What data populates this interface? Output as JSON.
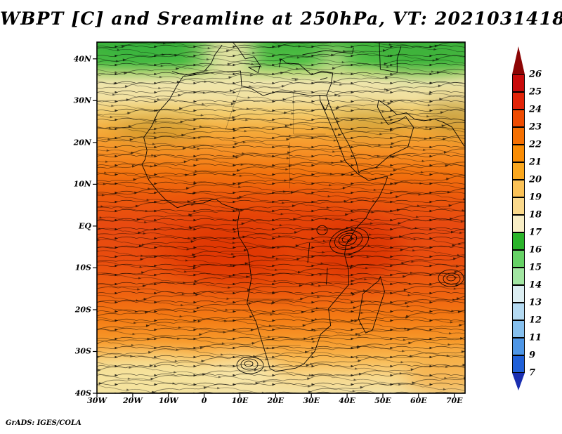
{
  "title": "WBPT [C] and Sreamline at 250hPa, VT: 2021031418",
  "credit": "GrADS: IGES/COLA",
  "map": {
    "lat_labels": [
      {
        "value": 40,
        "label": "40N"
      },
      {
        "value": 30,
        "label": "30N"
      },
      {
        "value": 20,
        "label": "20N"
      },
      {
        "value": 10,
        "label": "10N"
      },
      {
        "value": 0,
        "label": "EQ"
      },
      {
        "value": -10,
        "label": "10S"
      },
      {
        "value": -20,
        "label": "20S"
      },
      {
        "value": -30,
        "label": "30S"
      },
      {
        "value": -40,
        "label": "40S"
      }
    ],
    "lon_labels": [
      {
        "value": -30,
        "label": "30W"
      },
      {
        "value": -20,
        "label": "20W"
      },
      {
        "value": -10,
        "label": "10W"
      },
      {
        "value": 0,
        "label": "0"
      },
      {
        "value": 10,
        "label": "10E"
      },
      {
        "value": 20,
        "label": "20E"
      },
      {
        "value": 30,
        "label": "30E"
      },
      {
        "value": 40,
        "label": "40E"
      },
      {
        "value": 50,
        "label": "50E"
      },
      {
        "value": 60,
        "label": "60E"
      },
      {
        "value": 70,
        "label": "70E"
      }
    ]
  },
  "colorbar": {
    "labels": [
      "26",
      "25",
      "24",
      "23",
      "22",
      "21",
      "20",
      "19",
      "18",
      "17",
      "16",
      "15",
      "14",
      "13",
      "12",
      "11",
      "9",
      "7"
    ],
    "segment_colors": [
      "#c90b0b",
      "#e22408",
      "#ef4c02",
      "#f57002",
      "#f98c04",
      "#fba81f",
      "#fbc257",
      "#fad98c",
      "#f8eec6",
      "#2ab42a",
      "#66d266",
      "#a2e6a2",
      "#dceef2",
      "#b4daf2",
      "#86c0ee",
      "#4e96e6",
      "#2060d8"
    ],
    "arrow_top_color": "#8c0404",
    "arrow_bottom_color": "#1a2eb0"
  },
  "chart_data": {
    "type": "heatmap",
    "title": "WBPT [C] and Sreamline at 250hPa, VT: 2021031418",
    "variable": "WBPT",
    "units": "C",
    "level": "250hPa",
    "valid_time": "2021031418",
    "overlay": "streamlines",
    "renderer": "GrADS: IGES/COLA",
    "x_axis": {
      "label": "longitude",
      "range_deg": [
        -30,
        73
      ],
      "ticks": [
        "30W",
        "20W",
        "10W",
        "0",
        "10E",
        "20E",
        "30E",
        "40E",
        "50E",
        "60E",
        "70E"
      ]
    },
    "y_axis": {
      "label": "latitude",
      "range_deg": [
        -40,
        44
      ],
      "ticks": [
        "40S",
        "30S",
        "20S",
        "10S",
        "EQ",
        "10N",
        "20N",
        "30N",
        "40N"
      ]
    },
    "contour_levels": [
      7,
      9,
      11,
      12,
      13,
      14,
      15,
      16,
      17,
      18,
      19,
      20,
      21,
      22,
      23,
      24,
      25,
      26
    ],
    "palette_low_to_high": [
      "#1a2eb0",
      "#2060d8",
      "#4e96e6",
      "#86c0ee",
      "#b4daf2",
      "#dceef2",
      "#a2e6a2",
      "#66d266",
      "#2ab42a",
      "#f8eec6",
      "#fad98c",
      "#fbc257",
      "#fba81f",
      "#f98c04",
      "#f57002",
      "#ef4c02",
      "#e22408",
      "#c90b0b",
      "#8c0404"
    ],
    "legend_position": "right",
    "field_summary_by_latitude": [
      {
        "band": "36N-44N",
        "approx_wbpt_c": [
          14,
          17
        ],
        "shade": "green"
      },
      {
        "band": "26N-36N",
        "approx_wbpt_c": [
          17,
          20
        ],
        "shade": "pale yellow / cream"
      },
      {
        "band": "12N-26N",
        "approx_wbpt_c": [
          20,
          23
        ],
        "shade": "orange with khaki patches"
      },
      {
        "band": "18S-12N",
        "approx_wbpt_c": [
          23,
          25
        ],
        "shade": "red-orange (maximum)"
      },
      {
        "band": "30S-18S",
        "approx_wbpt_c": [
          21,
          23
        ],
        "shade": "orange"
      },
      {
        "band": "40S-30S",
        "approx_wbpt_c": [
          18,
          21
        ],
        "shade": "yellow to amber"
      }
    ],
    "notable_features": [
      {
        "type": "vortex",
        "lon": 40,
        "lat": -3
      },
      {
        "type": "vortex",
        "lon": 12.5,
        "lat": -33.5
      },
      {
        "type": "vortex",
        "lon": 69,
        "lat": -12.5
      }
    ]
  }
}
